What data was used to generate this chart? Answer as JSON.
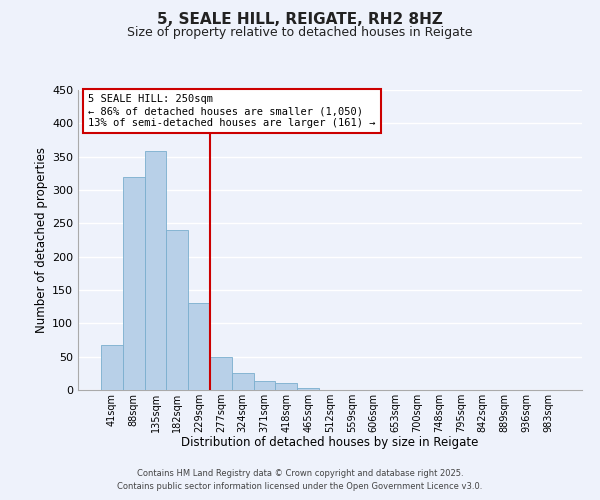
{
  "title": "5, SEALE HILL, REIGATE, RH2 8HZ",
  "subtitle": "Size of property relative to detached houses in Reigate",
  "xlabel": "Distribution of detached houses by size in Reigate",
  "ylabel": "Number of detached properties",
  "bar_labels": [
    "41sqm",
    "88sqm",
    "135sqm",
    "182sqm",
    "229sqm",
    "277sqm",
    "324sqm",
    "371sqm",
    "418sqm",
    "465sqm",
    "512sqm",
    "559sqm",
    "606sqm",
    "653sqm",
    "700sqm",
    "748sqm",
    "795sqm",
    "842sqm",
    "889sqm",
    "936sqm",
    "983sqm"
  ],
  "bar_values": [
    67,
    320,
    358,
    240,
    131,
    49,
    25,
    14,
    10,
    3,
    0,
    0,
    0,
    0,
    0,
    0,
    0,
    0,
    0,
    0,
    0
  ],
  "bar_color": "#b8d0e8",
  "bar_edgecolor": "#7aaece",
  "ylim": [
    0,
    450
  ],
  "yticks": [
    0,
    50,
    100,
    150,
    200,
    250,
    300,
    350,
    400,
    450
  ],
  "vline_x_index": 4.5,
  "vline_color": "#cc0000",
  "annotation_line1": "5 SEALE HILL: 250sqm",
  "annotation_line2": "← 86% of detached houses are smaller (1,050)",
  "annotation_line3": "13% of semi-detached houses are larger (161) →",
  "annotation_box_edgecolor": "#cc0000",
  "footer1": "Contains HM Land Registry data © Crown copyright and database right 2025.",
  "footer2": "Contains public sector information licensed under the Open Government Licence v3.0.",
  "bg_color": "#eef2fb",
  "grid_color": "#ffffff",
  "title_fontsize": 11,
  "subtitle_fontsize": 9,
  "bar_width": 1.0
}
